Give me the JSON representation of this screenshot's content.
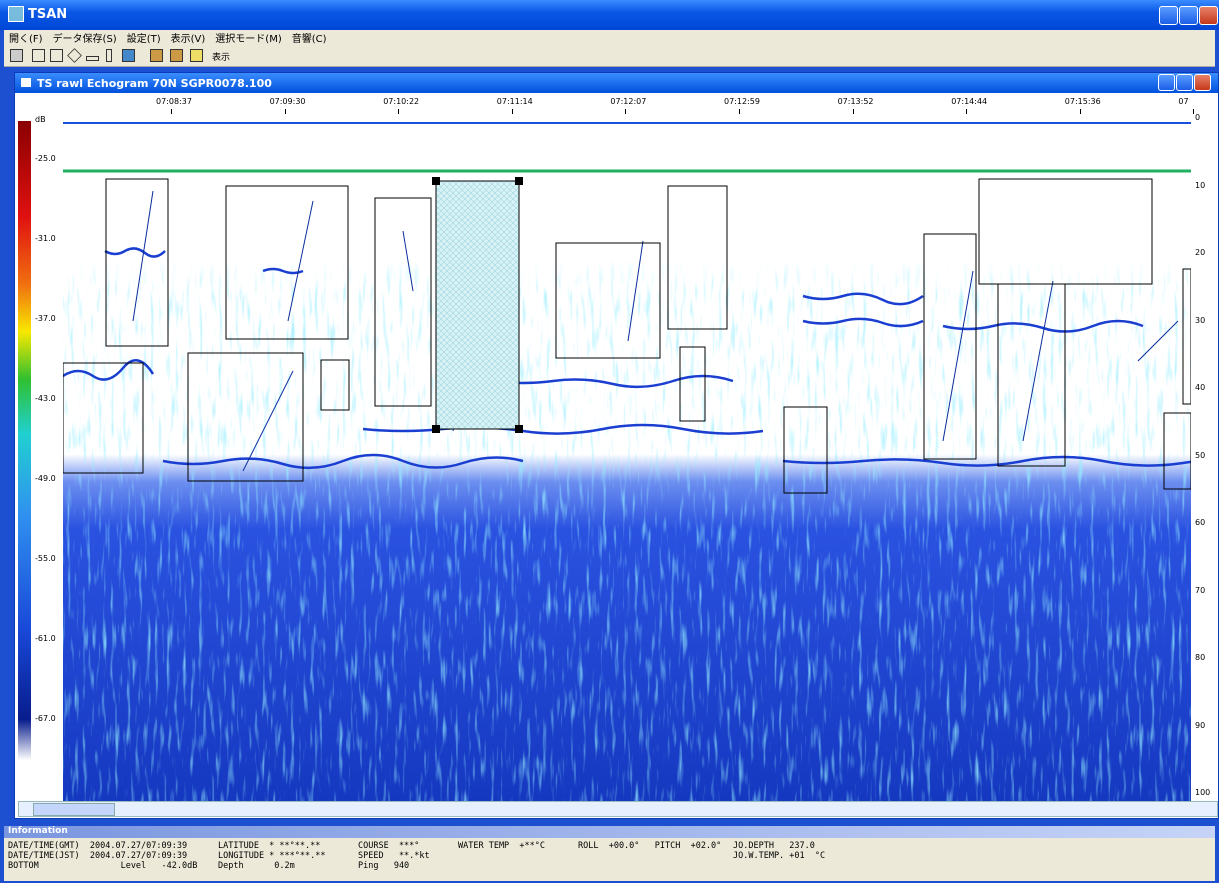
{
  "window": {
    "title": "TSAN"
  },
  "menu": [
    "開く(F)",
    "データ保存(S)",
    "設定(T)",
    "表示(V)",
    "選択モード(M)",
    "音響(C)"
  ],
  "toolbar": {
    "display_button": "表示"
  },
  "echogram": {
    "title": "TS rawl Echogram 70N SGPR0078.100",
    "time_labels": [
      "07:08:37",
      "07:09:30",
      "07:10:22",
      "07:11:14",
      "07:12:07",
      "07:12:59",
      "07:13:52",
      "07:14:44",
      "07:15:36",
      "07"
    ],
    "colorbar_unit": "dB",
    "colorbar_labels": [
      "-25.0",
      "-31.0",
      "-37.0",
      "-43.0",
      "-49.0",
      "-55.0",
      "-61.0",
      "-67.0"
    ],
    "depth_labels": [
      "0",
      "10",
      "20",
      "30",
      "40",
      "50",
      "60",
      "70",
      "80",
      "90",
      "100"
    ]
  },
  "info": {
    "title": "Information",
    "rows": [
      [
        "DATE/TIME(GMT)  2004.07.27/07:09:39",
        "LATITUDE  * **°**.**",
        "COURSE  ***°",
        "WATER TEMP  +**°C",
        "ROLL  +00.0°   PITCH  +02.0°",
        "JO.DEPTH   237.0"
      ],
      [
        "DATE/TIME(JST)  2004.07.27/07:09:39",
        "LONGITUDE * ***°**.**",
        "SPEED   **.*kt",
        "",
        "",
        "JO.W.TEMP. +01  °C"
      ],
      [
        "BOTTOM                Level   -42.0dB",
        "Depth      0.2m",
        "Ping   940",
        "",
        "",
        ""
      ]
    ]
  }
}
